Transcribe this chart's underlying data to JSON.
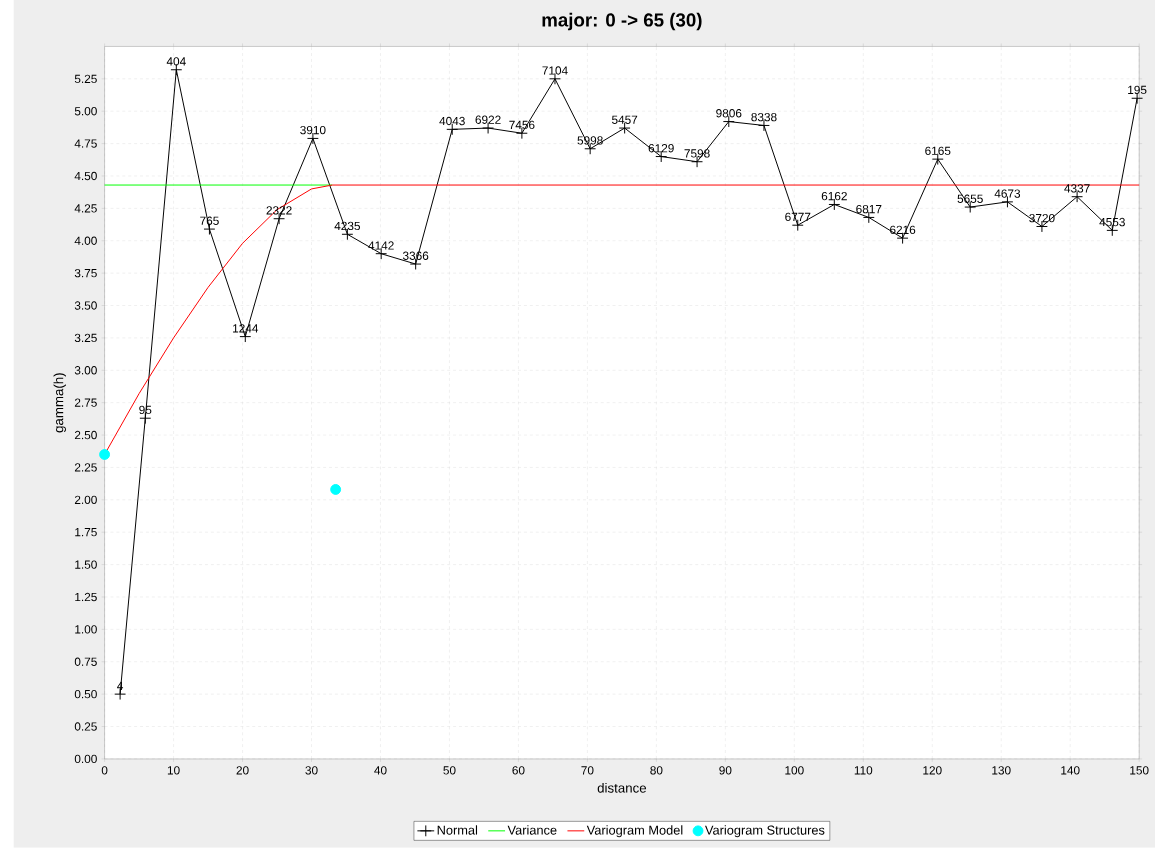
{
  "chart_data": {
    "type": "line",
    "title": "major: 0 -> 65 (30)",
    "xlabel": "distance",
    "ylabel": "gamma(h)",
    "xlim": [
      0,
      150
    ],
    "ylim": [
      0,
      5.5
    ],
    "xticks": [
      0,
      10,
      20,
      30,
      40,
      50,
      60,
      70,
      80,
      90,
      100,
      110,
      120,
      130,
      140,
      150
    ],
    "yticks": [
      {
        "value": 0,
        "label": "0.00"
      },
      {
        "value": 0.25,
        "label": "0.25"
      },
      {
        "value": 0.5,
        "label": "0.50"
      },
      {
        "value": 0.75,
        "label": "0.75"
      },
      {
        "value": 1,
        "label": "1.00"
      },
      {
        "value": 1.25,
        "label": "1.25"
      },
      {
        "value": 1.5,
        "label": "1.50"
      },
      {
        "value": 1.75,
        "label": "1.75"
      },
      {
        "value": 2,
        "label": "2.00"
      },
      {
        "value": 2.25,
        "label": "2.25"
      },
      {
        "value": 2.5,
        "label": "2.50"
      },
      {
        "value": 2.75,
        "label": "2.75"
      },
      {
        "value": 3,
        "label": "3.00"
      },
      {
        "value": 3.25,
        "label": "3.25"
      },
      {
        "value": 3.5,
        "label": "3.50"
      },
      {
        "value": 3.75,
        "label": "3.75"
      },
      {
        "value": 4,
        "label": "4.00"
      },
      {
        "value": 4.25,
        "label": "4.25"
      },
      {
        "value": 4.5,
        "label": "4.50"
      },
      {
        "value": 4.75,
        "label": "4.75"
      },
      {
        "value": 5,
        "label": "5.00"
      },
      {
        "value": 5.25,
        "label": "5.25"
      }
    ],
    "grid": true,
    "legend": "bottom",
    "series": [
      {
        "name": "Normal",
        "type": "line",
        "color": "#000000",
        "marker": "cross",
        "x": [
          2.25,
          5.9,
          10.4,
          15.2,
          20.4,
          25.3,
          30.2,
          35.2,
          40.1,
          45.1,
          50.4,
          55.6,
          60.5,
          65.3,
          70.4,
          75.4,
          80.7,
          85.9,
          90.5,
          95.6,
          100.5,
          105.8,
          110.8,
          115.7,
          120.8,
          125.5,
          130.9,
          135.9,
          141.0,
          146.1,
          149.7
        ],
        "values": [
          0.5,
          2.63,
          5.32,
          4.09,
          3.26,
          4.17,
          4.79,
          4.05,
          3.9,
          3.82,
          4.86,
          4.87,
          4.83,
          5.25,
          4.71,
          4.87,
          4.65,
          4.61,
          4.92,
          4.89,
          4.12,
          4.28,
          4.18,
          4.02,
          4.63,
          4.26,
          4.3,
          4.11,
          4.34,
          4.08,
          5.1
        ]
      },
      {
        "name": "Variance",
        "type": "line",
        "color": "#00ff00",
        "marker": "none",
        "x": [
          0,
          33
        ],
        "values": [
          4.43,
          4.43
        ]
      },
      {
        "name": "Variogram Model",
        "type": "line",
        "color": "#ff0000",
        "marker": "none",
        "x": [
          0,
          5,
          10,
          15,
          20,
          25,
          30,
          33,
          150
        ],
        "values": [
          2.35,
          2.82,
          3.25,
          3.64,
          3.98,
          4.24,
          4.4,
          4.43,
          4.43
        ]
      },
      {
        "name": "Variogram Structures",
        "type": "scatter",
        "color": "#00ffff",
        "marker": "circle",
        "x": [
          0,
          33.5
        ],
        "values": [
          2.35,
          2.08
        ]
      }
    ],
    "annotations": [
      {
        "text": "4",
        "x": 2.25,
        "y": 0.5
      },
      {
        "text": "95",
        "x": 5.9,
        "y": 2.63
      },
      {
        "text": "404",
        "x": 10.4,
        "y": 5.32
      },
      {
        "text": "765",
        "x": 15.2,
        "y": 4.09
      },
      {
        "text": "1244",
        "x": 20.4,
        "y": 3.26
      },
      {
        "text": "2322",
        "x": 25.3,
        "y": 4.17
      },
      {
        "text": "3910",
        "x": 30.2,
        "y": 4.79
      },
      {
        "text": "4235",
        "x": 35.2,
        "y": 4.05
      },
      {
        "text": "4142",
        "x": 40.1,
        "y": 3.9
      },
      {
        "text": "3366",
        "x": 45.1,
        "y": 3.82
      },
      {
        "text": "4043",
        "x": 50.4,
        "y": 4.86
      },
      {
        "text": "6922",
        "x": 55.6,
        "y": 4.87
      },
      {
        "text": "7456",
        "x": 60.5,
        "y": 4.83
      },
      {
        "text": "7104",
        "x": 65.3,
        "y": 5.25
      },
      {
        "text": "5998",
        "x": 70.4,
        "y": 4.71
      },
      {
        "text": "5457",
        "x": 75.4,
        "y": 4.87
      },
      {
        "text": "6129",
        "x": 80.7,
        "y": 4.65
      },
      {
        "text": "7598",
        "x": 85.9,
        "y": 4.61
      },
      {
        "text": "9806",
        "x": 90.5,
        "y": 4.92
      },
      {
        "text": "8338",
        "x": 95.6,
        "y": 4.89
      },
      {
        "text": "6777",
        "x": 100.5,
        "y": 4.12
      },
      {
        "text": "6162",
        "x": 105.8,
        "y": 4.28
      },
      {
        "text": "6817",
        "x": 110.8,
        "y": 4.18
      },
      {
        "text": "6216",
        "x": 115.7,
        "y": 4.02
      },
      {
        "text": "6165",
        "x": 120.8,
        "y": 4.63
      },
      {
        "text": "5655",
        "x": 125.5,
        "y": 4.26
      },
      {
        "text": "4673",
        "x": 130.9,
        "y": 4.3
      },
      {
        "text": "3720",
        "x": 135.9,
        "y": 4.11
      },
      {
        "text": "4337",
        "x": 141.0,
        "y": 4.34
      },
      {
        "text": "4553",
        "x": 146.1,
        "y": 4.08
      },
      {
        "text": "195",
        "x": 149.7,
        "y": 5.1
      }
    ]
  }
}
